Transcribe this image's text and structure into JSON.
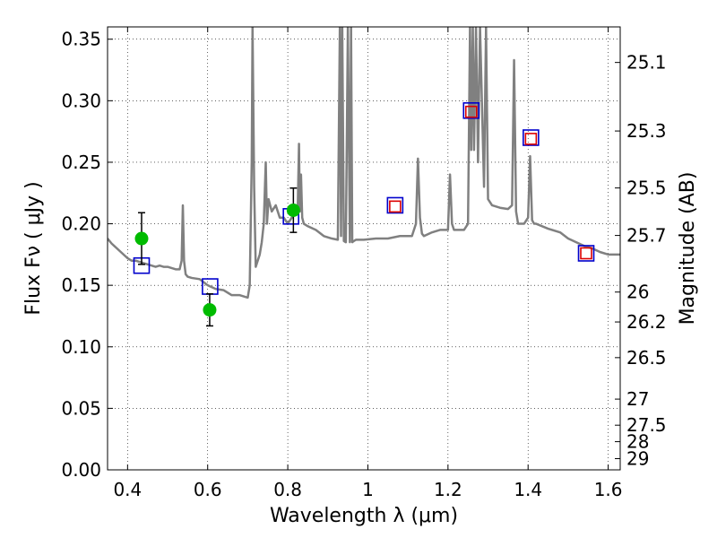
{
  "chart_data": {
    "type": "scatter",
    "xlabel": "Wavelength  λ (μm)",
    "ylabel": "Flux  Fν ( μJy )",
    "y2label": "Magnitude (AB)",
    "xlim": [
      0.35,
      1.63
    ],
    "ylim": [
      0.0,
      0.36
    ],
    "grid": true,
    "x_ticks": [
      0.4,
      0.6,
      0.8,
      1.0,
      1.2,
      1.4,
      1.6
    ],
    "x_tick_labels": [
      "0.4",
      "0.6",
      "0.8",
      "1",
      "1.2",
      "1.4",
      "1.6"
    ],
    "y_ticks": [
      0.0,
      0.05,
      0.1,
      0.15,
      0.2,
      0.25,
      0.3,
      0.35
    ],
    "y_tick_labels": [
      "0.00",
      "0.05",
      "0.10",
      "0.15",
      "0.20",
      "0.25",
      "0.30",
      "0.35"
    ],
    "y2_ticks": [
      {
        "label": "25.1",
        "flux": 0.3311
      },
      {
        "label": "25.3",
        "flux": 0.2754
      },
      {
        "label": "25.5",
        "flux": 0.2291
      },
      {
        "label": "25.7",
        "flux": 0.1905
      },
      {
        "label": "26",
        "flux": 0.1445
      },
      {
        "label": "26.2",
        "flux": 0.1202
      },
      {
        "label": "26.5",
        "flux": 0.0912
      },
      {
        "label": "27",
        "flux": 0.0575
      },
      {
        "label": "27.5",
        "flux": 0.0363
      },
      {
        "label": "28",
        "flux": 0.0229
      },
      {
        "label": "29",
        "flux": 0.0091
      }
    ],
    "series": [
      {
        "kind": "model_spectrum",
        "color": "#808080",
        "x": [
          0.35,
          0.36,
          0.37,
          0.38,
          0.39,
          0.4,
          0.41,
          0.42,
          0.43,
          0.44,
          0.45,
          0.46,
          0.47,
          0.48,
          0.49,
          0.5,
          0.51,
          0.52,
          0.53,
          0.535,
          0.538,
          0.541,
          0.545,
          0.55,
          0.56,
          0.58,
          0.6,
          0.62,
          0.64,
          0.66,
          0.68,
          0.7,
          0.705,
          0.71,
          0.712,
          0.716,
          0.72,
          0.725,
          0.73,
          0.735,
          0.74,
          0.745,
          0.748,
          0.752,
          0.76,
          0.77,
          0.78,
          0.79,
          0.8,
          0.81,
          0.82,
          0.825,
          0.828,
          0.83,
          0.833,
          0.836,
          0.84,
          0.85,
          0.87,
          0.89,
          0.91,
          0.925,
          0.93,
          0.933,
          0.936,
          0.94,
          0.945,
          0.95,
          0.955,
          0.958,
          0.961,
          0.965,
          0.97,
          0.99,
          1.02,
          1.05,
          1.08,
          1.11,
          1.12,
          1.125,
          1.13,
          1.135,
          1.14,
          1.16,
          1.18,
          1.2,
          1.205,
          1.21,
          1.215,
          1.22,
          1.24,
          1.25,
          1.255,
          1.258,
          1.262,
          1.265,
          1.27,
          1.275,
          1.28,
          1.29,
          1.295,
          1.3,
          1.31,
          1.33,
          1.35,
          1.36,
          1.365,
          1.37,
          1.375,
          1.38,
          1.39,
          1.4,
          1.405,
          1.41,
          1.415,
          1.42,
          1.45,
          1.48,
          1.5,
          1.52,
          1.54,
          1.56,
          1.58,
          1.6,
          1.63
        ],
        "y": [
          0.188,
          0.184,
          0.181,
          0.178,
          0.175,
          0.172,
          0.17,
          0.17,
          0.169,
          0.168,
          0.167,
          0.166,
          0.165,
          0.166,
          0.165,
          0.165,
          0.164,
          0.163,
          0.163,
          0.17,
          0.215,
          0.17,
          0.159,
          0.157,
          0.156,
          0.155,
          0.15,
          0.147,
          0.146,
          0.142,
          0.142,
          0.14,
          0.15,
          0.25,
          0.36,
          0.23,
          0.165,
          0.17,
          0.175,
          0.185,
          0.2,
          0.25,
          0.2,
          0.22,
          0.21,
          0.215,
          0.205,
          0.205,
          0.2,
          0.205,
          0.208,
          0.215,
          0.265,
          0.21,
          0.24,
          0.205,
          0.2,
          0.198,
          0.195,
          0.19,
          0.188,
          0.187,
          0.36,
          0.19,
          0.36,
          0.186,
          0.185,
          0.36,
          0.185,
          0.36,
          0.185,
          0.186,
          0.187,
          0.187,
          0.188,
          0.188,
          0.19,
          0.19,
          0.2,
          0.253,
          0.205,
          0.192,
          0.19,
          0.193,
          0.195,
          0.195,
          0.24,
          0.2,
          0.195,
          0.195,
          0.195,
          0.2,
          0.36,
          0.26,
          0.36,
          0.26,
          0.36,
          0.25,
          0.36,
          0.23,
          0.36,
          0.22,
          0.215,
          0.213,
          0.212,
          0.215,
          0.333,
          0.21,
          0.2,
          0.2,
          0.2,
          0.205,
          0.255,
          0.203,
          0.2,
          0.2,
          0.196,
          0.193,
          0.188,
          0.185,
          0.182,
          0.18,
          0.177,
          0.175,
          0.175
        ]
      },
      {
        "kind": "observed",
        "marker": "circle",
        "color": "#00bb00",
        "points": [
          {
            "x": 0.435,
            "y": 0.188,
            "err": 0.021
          },
          {
            "x": 0.605,
            "y": 0.13,
            "err": 0.013
          },
          {
            "x": 0.814,
            "y": 0.211,
            "err": 0.018
          }
        ]
      },
      {
        "kind": "model_photometry",
        "marker": "square",
        "color": "#0000cc",
        "points": [
          {
            "x": 0.435,
            "y": 0.166
          },
          {
            "x": 0.606,
            "y": 0.149
          },
          {
            "x": 0.808,
            "y": 0.206
          },
          {
            "x": 1.068,
            "y": 0.215
          },
          {
            "x": 1.258,
            "y": 0.292
          },
          {
            "x": 1.407,
            "y": 0.27
          },
          {
            "x": 1.545,
            "y": 0.176
          }
        ]
      },
      {
        "kind": "upper_limits",
        "marker": "square",
        "color": "#dd0000",
        "points": [
          {
            "x": 1.068,
            "y": 0.214
          },
          {
            "x": 1.258,
            "y": 0.291
          },
          {
            "x": 1.407,
            "y": 0.269
          },
          {
            "x": 1.545,
            "y": 0.176
          }
        ]
      }
    ]
  }
}
